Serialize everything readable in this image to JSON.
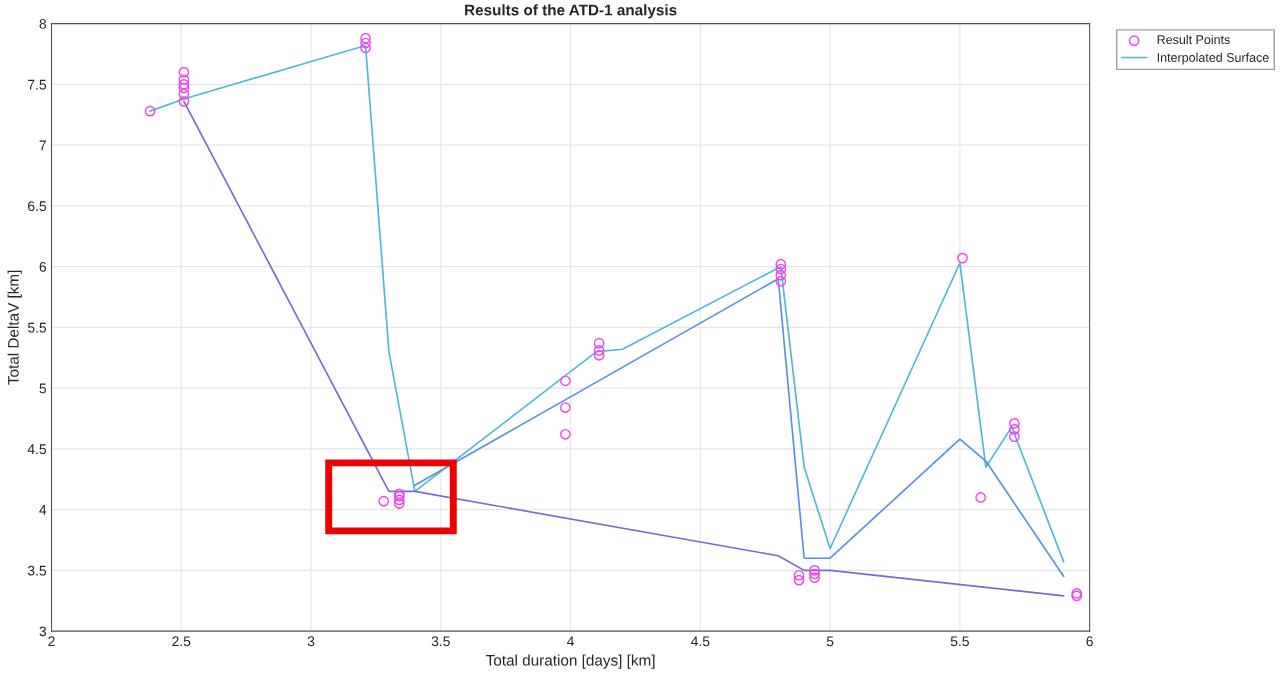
{
  "chart_data": {
    "type": "scatter",
    "title": "Results of the ATD-1 analysis",
    "xlabel": "Total duration [days] [km]",
    "ylabel": "Total DeltaV [km]",
    "xlim": [
      2,
      6
    ],
    "xticks": [
      2,
      2.5,
      3,
      3.5,
      4,
      4.5,
      5,
      5.5,
      6
    ],
    "ylim": [
      3,
      8
    ],
    "yticks": [
      3,
      3.5,
      4,
      4.5,
      5,
      5.5,
      6,
      6.5,
      7,
      7.5,
      8
    ],
    "grid": true,
    "legend": "top right",
    "series": [
      {
        "name": "Result Points",
        "marker": "circle",
        "color": "#ee44ee",
        "x": [
          2.38,
          2.51,
          2.51,
          2.51,
          2.51,
          2.51,
          2.51,
          3.21,
          3.21,
          3.21,
          3.28,
          3.34,
          3.34,
          3.34,
          3.34,
          3.98,
          3.98,
          3.98,
          4.11,
          4.11,
          4.11,
          4.81,
          4.81,
          4.81,
          4.81,
          4.88,
          4.88,
          4.94,
          4.94,
          4.94,
          5.51,
          5.58,
          5.71,
          5.71,
          5.71,
          5.95,
          5.95
        ],
        "values": [
          7.28,
          7.36,
          7.42,
          7.47,
          7.5,
          7.54,
          7.6,
          7.8,
          7.84,
          7.88,
          4.07,
          4.05,
          4.08,
          4.11,
          4.13,
          4.62,
          4.84,
          5.06,
          5.27,
          5.31,
          5.37,
          5.88,
          5.93,
          5.98,
          6.02,
          3.42,
          3.46,
          3.44,
          3.47,
          3.5,
          6.07,
          4.1,
          4.6,
          4.66,
          4.71,
          3.29,
          3.31
        ]
      },
      {
        "name": "Interpolated Surface",
        "type": "line",
        "marker": "none",
        "color": "#4fb8d8",
        "x": [
          2.38,
          2.51,
          3.21,
          3.3,
          3.4,
          4.1,
          4.2,
          4.81,
          4.9,
          5.0,
          5.5,
          5.6,
          5.7,
          5.9
        ],
        "values": [
          7.28,
          7.38,
          7.82,
          5.3,
          4.15,
          5.3,
          5.32,
          6.0,
          4.35,
          3.68,
          6.03,
          4.35,
          4.68,
          3.57
        ]
      },
      {
        "type": "line",
        "marker": "none",
        "color": "#6f6fd0",
        "x": [
          2.51,
          3.3,
          3.4,
          4.8,
          4.9,
          5.0,
          5.9
        ],
        "values": [
          7.36,
          4.15,
          4.15,
          3.62,
          3.5,
          3.5,
          3.29
        ]
      },
      {
        "type": "line",
        "marker": "none",
        "color": "#5a90e0",
        "x": [
          3.4,
          4.8,
          4.9,
          5.0,
          5.5,
          5.6,
          5.9
        ],
        "values": [
          4.2,
          5.9,
          3.6,
          3.6,
          4.58,
          4.4,
          3.45
        ]
      }
    ]
  }
}
